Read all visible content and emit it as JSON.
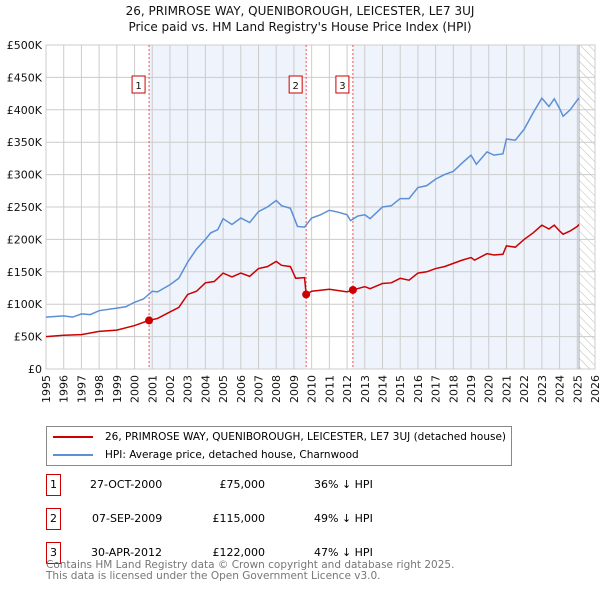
{
  "chart_data": {
    "type": "line",
    "title": "26, PRIMROSE WAY, QUENIBOROUGH, LEICESTER, LE7 3UJ",
    "subtitle": "Price paid vs. HM Land Registry's House Price Index (HPI)",
    "xlim": [
      1995,
      2026
    ],
    "ylim": [
      0,
      500000
    ],
    "x_ticks": [
      "1995",
      "1996",
      "1997",
      "1998",
      "1999",
      "2000",
      "2001",
      "2002",
      "2003",
      "2004",
      "2005",
      "2006",
      "2007",
      "2008",
      "2009",
      "2010",
      "2011",
      "2012",
      "2013",
      "2014",
      "2015",
      "2016",
      "2017",
      "2018",
      "2019",
      "2020",
      "2021",
      "2022",
      "2023",
      "2024",
      "2025",
      "2026"
    ],
    "y_ticks": [
      {
        "v": 0,
        "label": "£0"
      },
      {
        "v": 50000,
        "label": "£50K"
      },
      {
        "v": 100000,
        "label": "£100K"
      },
      {
        "v": 150000,
        "label": "£150K"
      },
      {
        "v": 200000,
        "label": "£200K"
      },
      {
        "v": 250000,
        "label": "£250K"
      },
      {
        "v": 300000,
        "label": "£300K"
      },
      {
        "v": 350000,
        "label": "£350K"
      },
      {
        "v": 400000,
        "label": "£400K"
      },
      {
        "v": 450000,
        "label": "£450K"
      },
      {
        "v": 500000,
        "label": "£500K"
      }
    ],
    "grid": true,
    "data_end": 2025.1,
    "series": [
      {
        "name": "26, PRIMROSE WAY, QUENIBOROUGH, LEICESTER, LE7 3UJ (detached house)",
        "color": "#cc0000",
        "points": [
          [
            1995,
            50
          ],
          [
            1996,
            52
          ],
          [
            1997,
            53
          ],
          [
            1998,
            58
          ],
          [
            1999,
            60
          ],
          [
            2000,
            67
          ],
          [
            2000.82,
            75
          ],
          [
            2001.3,
            78
          ],
          [
            2002,
            88
          ],
          [
            2002.5,
            95
          ],
          [
            2003,
            115
          ],
          [
            2003.5,
            120
          ],
          [
            2004,
            133
          ],
          [
            2004.5,
            135
          ],
          [
            2005,
            148
          ],
          [
            2005.5,
            142
          ],
          [
            2006,
            148
          ],
          [
            2006.5,
            143
          ],
          [
            2007,
            155
          ],
          [
            2007.5,
            158
          ],
          [
            2008,
            166
          ],
          [
            2008.3,
            160
          ],
          [
            2008.8,
            158
          ],
          [
            2009.1,
            140
          ],
          [
            2009.6,
            141
          ],
          [
            2009.69,
            115
          ],
          [
            2010,
            120
          ],
          [
            2011,
            123
          ],
          [
            2012,
            119
          ],
          [
            2012.33,
            122
          ],
          [
            2013,
            127
          ],
          [
            2013.3,
            124
          ],
          [
            2014,
            132
          ],
          [
            2014.5,
            133
          ],
          [
            2015,
            140
          ],
          [
            2015.5,
            137
          ],
          [
            2016,
            148
          ],
          [
            2016.5,
            150
          ],
          [
            2017,
            155
          ],
          [
            2017.5,
            158
          ],
          [
            2018,
            163
          ],
          [
            2018.5,
            168
          ],
          [
            2019,
            172
          ],
          [
            2019.2,
            168
          ],
          [
            2019.9,
            178
          ],
          [
            2020.3,
            176
          ],
          [
            2020.8,
            177
          ],
          [
            2021,
            190
          ],
          [
            2021.5,
            188
          ],
          [
            2022,
            200
          ],
          [
            2022.5,
            210
          ],
          [
            2023,
            222
          ],
          [
            2023.4,
            216
          ],
          [
            2023.7,
            222
          ],
          [
            2024,
            213
          ],
          [
            2024.2,
            208
          ],
          [
            2024.6,
            213
          ],
          [
            2025,
            220
          ],
          [
            2025.1,
            223
          ]
        ]
      },
      {
        "name": "HPI: Average price, detached house, Charnwood",
        "color": "#5b8fd6",
        "points": [
          [
            1995,
            80
          ],
          [
            1996,
            82
          ],
          [
            1996.5,
            80
          ],
          [
            1997,
            85
          ],
          [
            1997.5,
            84
          ],
          [
            1998,
            90
          ],
          [
            1999,
            94
          ],
          [
            1999.5,
            96
          ],
          [
            2000,
            103
          ],
          [
            2000.5,
            108
          ],
          [
            2001,
            120
          ],
          [
            2001.3,
            119
          ],
          [
            2002,
            130
          ],
          [
            2002.5,
            140
          ],
          [
            2003,
            165
          ],
          [
            2003.5,
            185
          ],
          [
            2004,
            200
          ],
          [
            2004.3,
            210
          ],
          [
            2004.7,
            215
          ],
          [
            2005,
            232
          ],
          [
            2005.5,
            223
          ],
          [
            2006,
            233
          ],
          [
            2006.5,
            226
          ],
          [
            2007,
            243
          ],
          [
            2007.5,
            250
          ],
          [
            2008,
            260
          ],
          [
            2008.3,
            252
          ],
          [
            2008.8,
            248
          ],
          [
            2009.2,
            220
          ],
          [
            2009.6,
            219
          ],
          [
            2010,
            233
          ],
          [
            2010.5,
            238
          ],
          [
            2011,
            245
          ],
          [
            2011.5,
            242
          ],
          [
            2012,
            238
          ],
          [
            2012.2,
            229
          ],
          [
            2012.6,
            236
          ],
          [
            2013,
            238
          ],
          [
            2013.3,
            232
          ],
          [
            2014,
            250
          ],
          [
            2014.5,
            252
          ],
          [
            2015,
            263
          ],
          [
            2015.5,
            263
          ],
          [
            2016,
            280
          ],
          [
            2016.5,
            283
          ],
          [
            2017,
            293
          ],
          [
            2017.5,
            300
          ],
          [
            2018,
            305
          ],
          [
            2018.5,
            318
          ],
          [
            2019,
            330
          ],
          [
            2019.3,
            316
          ],
          [
            2019.9,
            335
          ],
          [
            2020.3,
            330
          ],
          [
            2020.8,
            332
          ],
          [
            2021,
            355
          ],
          [
            2021.5,
            353
          ],
          [
            2022,
            370
          ],
          [
            2022.5,
            395
          ],
          [
            2023,
            418
          ],
          [
            2023.4,
            405
          ],
          [
            2023.7,
            417
          ],
          [
            2024,
            402
          ],
          [
            2024.2,
            390
          ],
          [
            2024.6,
            400
          ],
          [
            2025,
            415
          ],
          [
            2025.1,
            418
          ]
        ]
      }
    ],
    "sales": [
      {
        "id": "1",
        "x": 2000.82,
        "value": 75000
      },
      {
        "id": "2",
        "x": 2009.69,
        "value": 115000
      },
      {
        "id": "3",
        "x": 2012.33,
        "value": 122000
      }
    ]
  },
  "legend": {
    "property": "26, PRIMROSE WAY, QUENIBOROUGH, LEICESTER, LE7 3UJ (detached house)",
    "hpi": "HPI: Average price, detached house, Charnwood"
  },
  "transactions": [
    {
      "id": "1",
      "date": "27-OCT-2000",
      "price": "£75,000",
      "diff": "36% ↓ HPI"
    },
    {
      "id": "2",
      "date": "07-SEP-2009",
      "price": "£115,000",
      "diff": "49% ↓ HPI"
    },
    {
      "id": "3",
      "date": "30-APR-2012",
      "price": "£122,000",
      "diff": "47% ↓ HPI"
    }
  ],
  "footer": {
    "line1": "Contains HM Land Registry data © Crown copyright and database right 2025.",
    "line2": "This data is licensed under the Open Government Licence v3.0."
  }
}
